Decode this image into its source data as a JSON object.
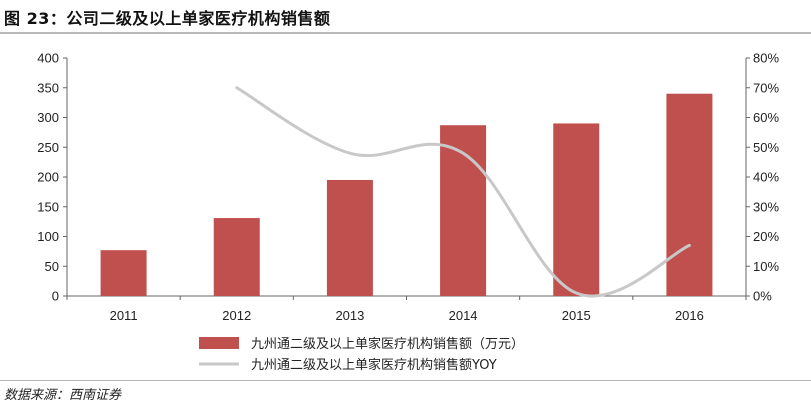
{
  "title": "图 23：公司二级及以上单家医疗机构销售额",
  "source": "数据来源：西南证券",
  "chart_data": {
    "type": "bar",
    "categories": [
      "2011",
      "2012",
      "2013",
      "2014",
      "2015",
      "2016"
    ],
    "series": [
      {
        "name": "九州通二级及以上单家医疗机构销售额（万元）",
        "type": "bar",
        "axis": "left",
        "color": "#c0504d",
        "values": [
          77,
          131,
          195,
          287,
          290,
          340
        ]
      },
      {
        "name": "九州通二级及以上单家医疗机构销售额YOY",
        "type": "line",
        "axis": "right",
        "color": "#c8c8c8",
        "values": [
          null,
          0.7,
          0.48,
          0.48,
          0.01,
          0.17
        ]
      }
    ],
    "y_left": {
      "min": 0,
      "max": 400,
      "step": 50,
      "ticks": [
        "0",
        "50",
        "100",
        "150",
        "200",
        "250",
        "300",
        "350",
        "400"
      ]
    },
    "y_right": {
      "min": 0,
      "max": 0.8,
      "step": 0.1,
      "ticks": [
        "0%",
        "10%",
        "20%",
        "30%",
        "40%",
        "50%",
        "60%",
        "70%",
        "80%"
      ]
    },
    "grid": false,
    "legend_position": "bottom"
  }
}
